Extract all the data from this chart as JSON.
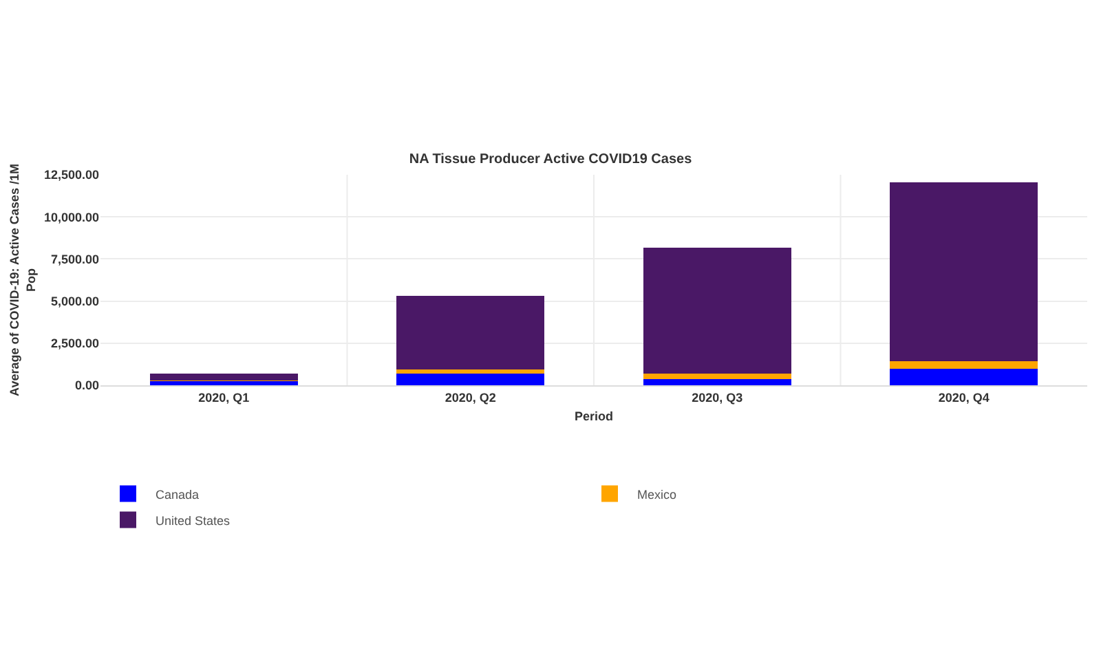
{
  "chart_data": {
    "type": "bar",
    "title": "NA Tissue Producer Active COVID19 Cases",
    "xlabel": "Period",
    "ylabel": "Average of COVID-19: Active Cases /1M Pop",
    "categories": [
      "2020, Q1",
      "2020, Q2",
      "2020, Q3",
      "2020, Q4"
    ],
    "stacked": true,
    "series": [
      {
        "name": "Canada",
        "color": "#0000ff",
        "values": [
          250,
          700,
          350,
          1000
        ]
      },
      {
        "name": "Mexico",
        "color": "#ffa500",
        "values": [
          20,
          220,
          330,
          440
        ]
      },
      {
        "name": "United States",
        "color": "#4a1866",
        "values": [
          410,
          4390,
          7500,
          10620
        ]
      }
    ],
    "ylim": [
      0,
      12500
    ],
    "yticks": [
      {
        "value": 0,
        "label": "0.00"
      },
      {
        "value": 2500,
        "label": "2,500.00"
      },
      {
        "value": 5000,
        "label": "5,000.00"
      },
      {
        "value": 7500,
        "label": "7,500.00"
      },
      {
        "value": 10000,
        "label": "10,000.00"
      },
      {
        "value": 12500,
        "label": "12,500.00"
      }
    ],
    "grid": true,
    "legend": "bottom"
  }
}
